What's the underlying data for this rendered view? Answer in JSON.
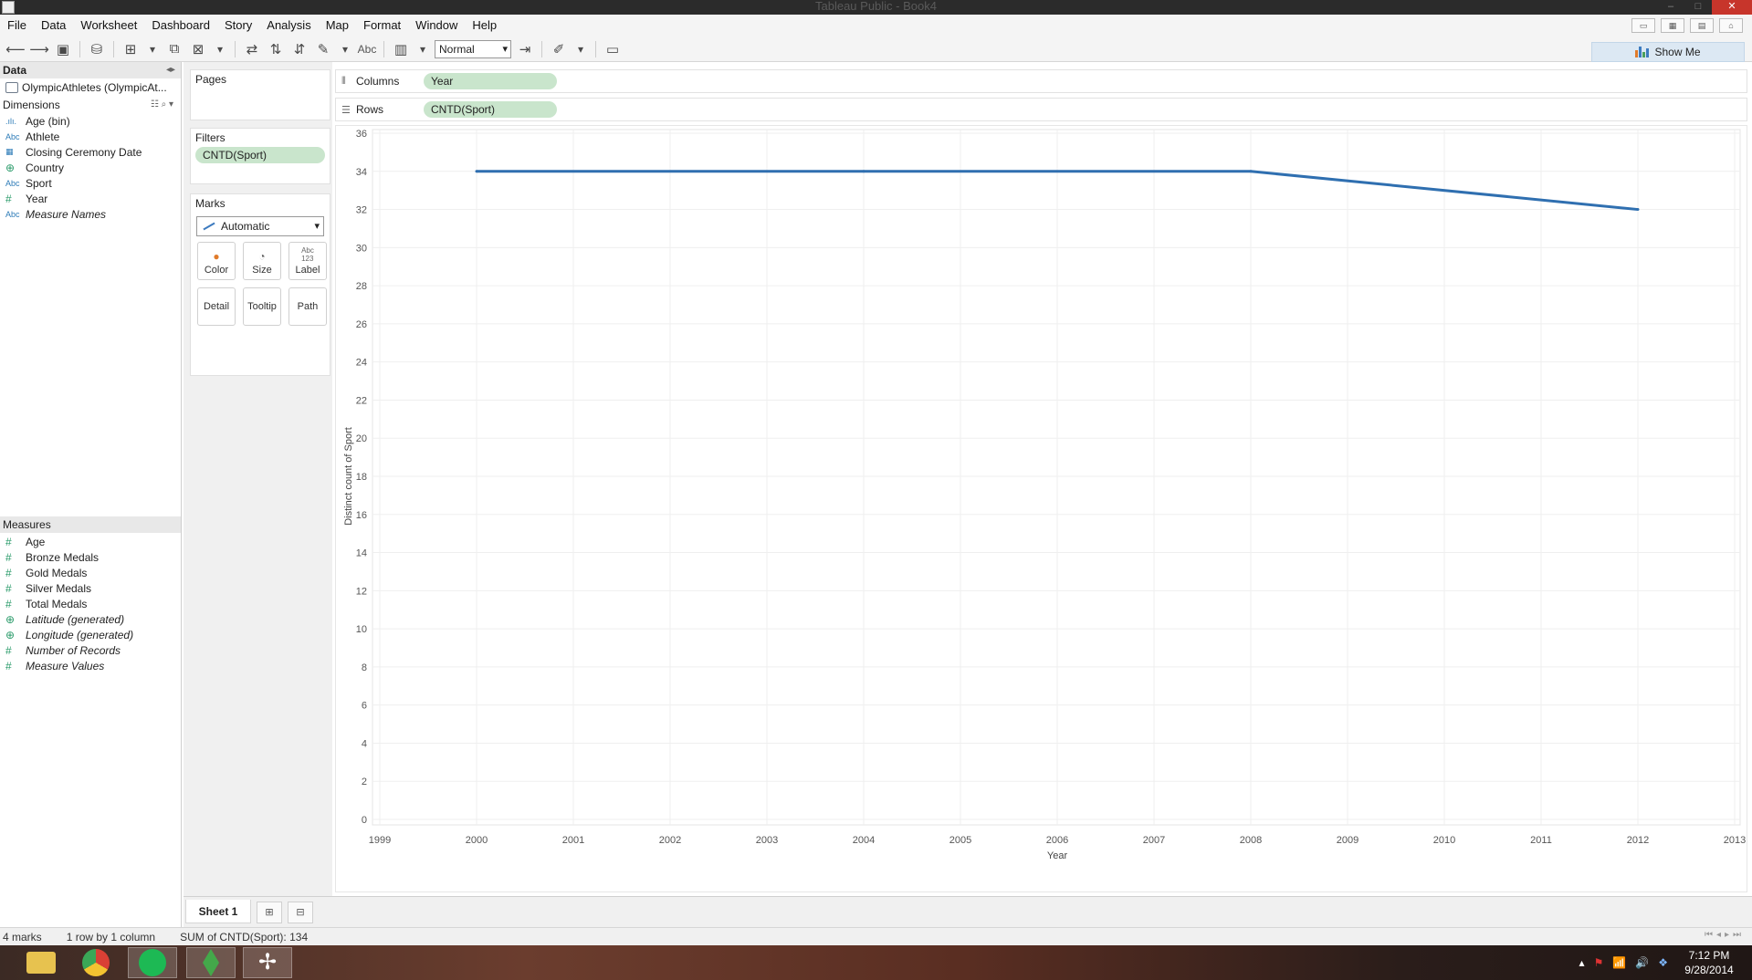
{
  "window": {
    "title": "Tableau Public - Book4"
  },
  "menu": [
    "File",
    "Data",
    "Worksheet",
    "Dashboard",
    "Story",
    "Analysis",
    "Map",
    "Format",
    "Window",
    "Help"
  ],
  "toolbar": {
    "fit_value": "Normal",
    "abc_label": "Abc",
    "show_me_label": "Show Me"
  },
  "data_pane": {
    "header": "Data",
    "data_source": "OlympicAthletes (OlympicAt...",
    "dimensions_header": "Dimensions",
    "dimensions": [
      {
        "icon": "histogram-icon",
        "glyph": ".ılı.",
        "label": "Age (bin)",
        "italic": false
      },
      {
        "icon": "string-icon",
        "glyph": "Abc",
        "label": "Athlete",
        "italic": false
      },
      {
        "icon": "date-icon",
        "glyph": "▦",
        "label": "Closing Ceremony Date",
        "italic": false
      },
      {
        "icon": "globe-icon",
        "glyph": "⊕",
        "label": "Country",
        "italic": false
      },
      {
        "icon": "string-icon",
        "glyph": "Abc",
        "label": "Sport",
        "italic": false
      },
      {
        "icon": "number-icon",
        "glyph": "#",
        "label": "Year",
        "italic": false
      },
      {
        "icon": "string-icon",
        "glyph": "Abc",
        "label": "Measure Names",
        "italic": true
      }
    ],
    "measures_header": "Measures",
    "measures": [
      {
        "icon": "number-icon",
        "glyph": "#",
        "label": "Age",
        "italic": false
      },
      {
        "icon": "number-icon",
        "glyph": "#",
        "label": "Bronze Medals",
        "italic": false
      },
      {
        "icon": "number-icon",
        "glyph": "#",
        "label": "Gold Medals",
        "italic": false
      },
      {
        "icon": "number-icon",
        "glyph": "#",
        "label": "Silver Medals",
        "italic": false
      },
      {
        "icon": "number-icon",
        "glyph": "#",
        "label": "Total Medals",
        "italic": false
      },
      {
        "icon": "globe-icon",
        "glyph": "⊕",
        "label": "Latitude (generated)",
        "italic": true
      },
      {
        "icon": "globe-icon",
        "glyph": "⊕",
        "label": "Longitude (generated)",
        "italic": true
      },
      {
        "icon": "number-icon",
        "glyph": "#",
        "label": "Number of Records",
        "italic": true
      },
      {
        "icon": "number-icon",
        "glyph": "#",
        "label": "Measure Values",
        "italic": true
      }
    ]
  },
  "cards": {
    "pages_title": "Pages",
    "filters_title": "Filters",
    "filter_pill": "CNTD(Sport)",
    "marks_title": "Marks",
    "mark_type": "Automatic",
    "mark_buttons": [
      "Color",
      "Size",
      "Label",
      "Detail",
      "Tooltip",
      "Path"
    ]
  },
  "shelves": {
    "columns_label": "Columns",
    "columns_pill": "Year",
    "rows_label": "Rows",
    "rows_pill": "CNTD(Sport)"
  },
  "chart_data": {
    "type": "line",
    "title": "",
    "xlabel": "Year",
    "ylabel": "Distinct count of Sport",
    "x": [
      2000,
      2004,
      2008,
      2012
    ],
    "values": [
      34,
      34,
      34,
      32
    ],
    "xlim": [
      1999,
      2013
    ],
    "ylim": [
      0,
      36
    ],
    "x_ticks": [
      1999,
      2000,
      2001,
      2002,
      2003,
      2004,
      2005,
      2006,
      2007,
      2008,
      2009,
      2010,
      2011,
      2012,
      2013
    ],
    "y_ticks": [
      0,
      2,
      4,
      6,
      8,
      10,
      12,
      14,
      16,
      18,
      20,
      22,
      24,
      26,
      28,
      30,
      32,
      34,
      36
    ],
    "grid": true,
    "color": "#2f6fb0"
  },
  "sheet_tab": "Sheet 1",
  "status": {
    "marks": "4 marks",
    "dims": "1 row by 1 column",
    "sum": "SUM of CNTD(Sport): 134"
  },
  "taskbar": {
    "apps": [
      "file-explorer-icon",
      "chrome-icon",
      "spotify-icon",
      "sims-icon",
      "tableau-icon"
    ],
    "time": "7:12 PM",
    "date": "9/28/2014"
  }
}
